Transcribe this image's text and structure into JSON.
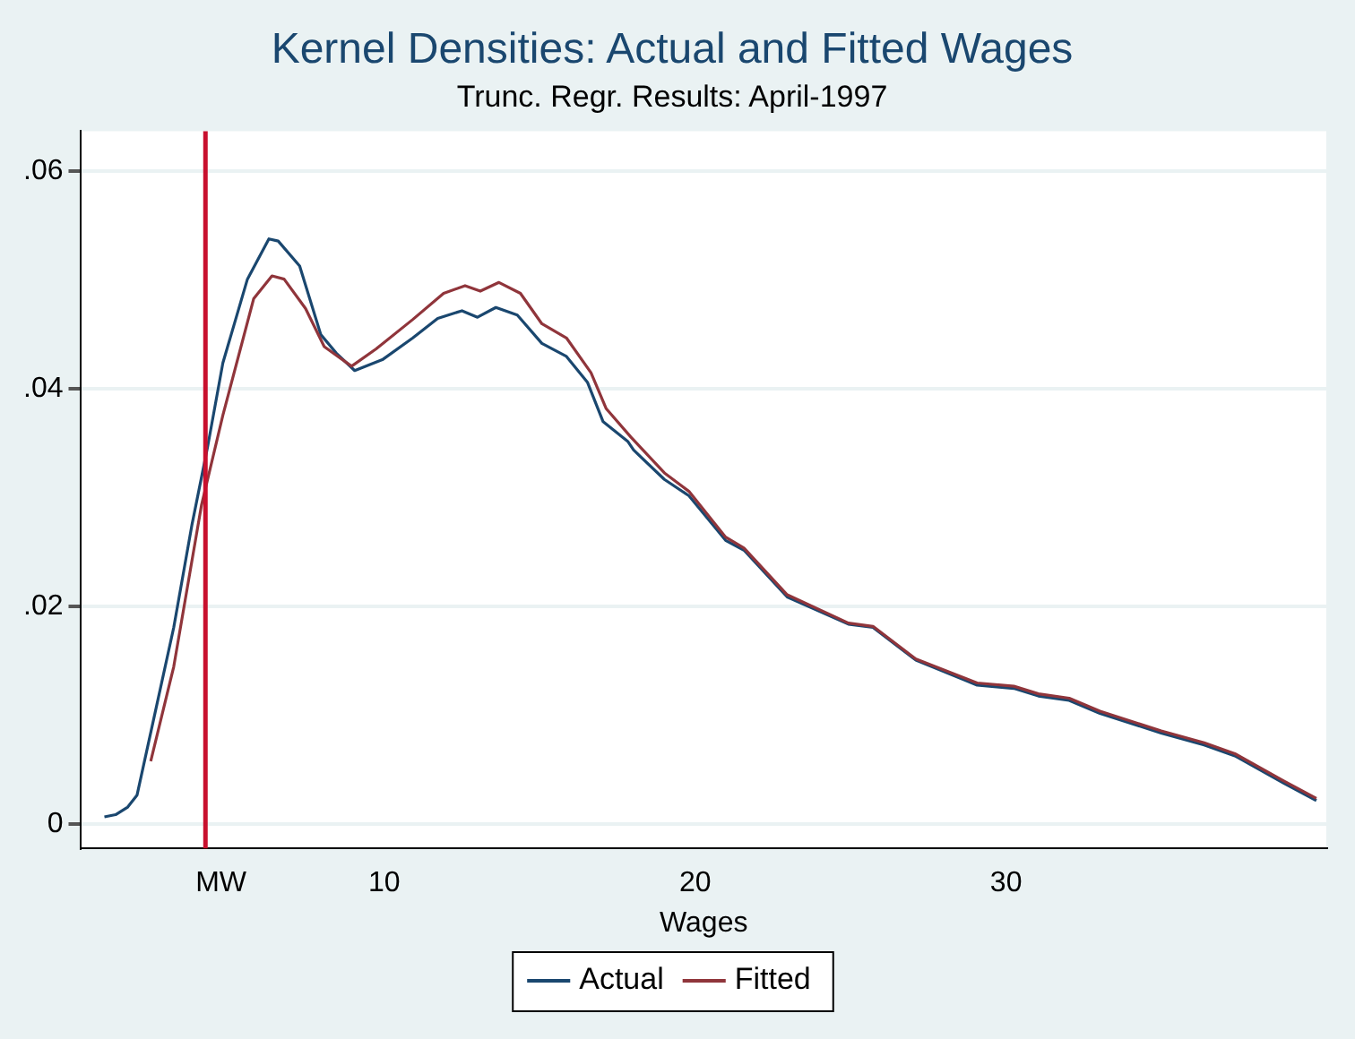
{
  "chart_data": {
    "type": "line",
    "title": "Kernel Densities: Actual and Fitted Wages",
    "subtitle": "Trunc. Regr. Results: April-1997",
    "xlabel": "Wages",
    "xlim": [
      0.25,
      40.3
    ],
    "ylim": [
      -0.0022,
      0.0637
    ],
    "xticks": [
      {
        "value": 4.75,
        "label": "MW"
      },
      10,
      20,
      30
    ],
    "yticks": [
      {
        "value": 0,
        "label": "0"
      },
      {
        "value": 0.02,
        "label": ".02"
      },
      {
        "value": 0.04,
        "label": ".04"
      },
      {
        "value": 0.06,
        "label": ".06"
      }
    ],
    "grid": "y",
    "legend": "bottom",
    "marker": "none",
    "line_style": "solid",
    "ref_lines": [
      {
        "axis": "x",
        "value": 4.25,
        "color": "#c8102e"
      }
    ],
    "series": [
      {
        "name": "Actual",
        "color": "#1a476f",
        "x": [
          1.0,
          1.36,
          1.75,
          2.05,
          2.64,
          3.23,
          3.82,
          4.32,
          4.81,
          5.6,
          6.29,
          6.59,
          7.28,
          7.96,
          8.46,
          9.05,
          9.94,
          10.92,
          11.72,
          12.5,
          13.0,
          13.59,
          14.28,
          15.07,
          15.86,
          16.54,
          17.04,
          17.83,
          18.02,
          19.01,
          19.8,
          20.98,
          21.57,
          22.96,
          24.93,
          25.72,
          27.1,
          29.07,
          30.25,
          31.04,
          32.03,
          33.02,
          34.99,
          36.37,
          37.36,
          38.93,
          39.98
        ],
        "values": [
          0.0007,
          0.0009,
          0.0016,
          0.0027,
          0.0104,
          0.0181,
          0.0276,
          0.0347,
          0.0424,
          0.0501,
          0.0538,
          0.0536,
          0.0513,
          0.045,
          0.0433,
          0.0417,
          0.0427,
          0.0447,
          0.0465,
          0.0472,
          0.0466,
          0.0475,
          0.0468,
          0.0442,
          0.043,
          0.0406,
          0.037,
          0.0352,
          0.0344,
          0.0317,
          0.0302,
          0.0261,
          0.0252,
          0.0209,
          0.0184,
          0.0181,
          0.0151,
          0.0128,
          0.0125,
          0.0118,
          0.0114,
          0.0102,
          0.0084,
          0.0073,
          0.0063,
          0.0038,
          0.0022
        ]
      },
      {
        "name": "Fitted",
        "color": "#90353b",
        "x": [
          2.49,
          3.23,
          4.12,
          4.81,
          5.8,
          6.39,
          6.78,
          7.47,
          8.07,
          8.95,
          9.74,
          10.92,
          11.91,
          12.6,
          13.09,
          13.69,
          14.38,
          15.07,
          15.86,
          16.65,
          17.14,
          17.93,
          19.01,
          19.8,
          20.98,
          21.57,
          22.96,
          24.93,
          25.72,
          27.1,
          29.07,
          30.25,
          31.04,
          32.03,
          33.02,
          34.99,
          36.37,
          37.36,
          38.93,
          39.98
        ],
        "values": [
          0.0058,
          0.0145,
          0.0293,
          0.0376,
          0.0483,
          0.0504,
          0.0501,
          0.0474,
          0.0439,
          0.0421,
          0.0437,
          0.0464,
          0.0488,
          0.0495,
          0.049,
          0.0498,
          0.0488,
          0.046,
          0.0447,
          0.0415,
          0.0382,
          0.0356,
          0.0323,
          0.0306,
          0.0264,
          0.0254,
          0.0211,
          0.0185,
          0.0182,
          0.0152,
          0.013,
          0.0127,
          0.012,
          0.0116,
          0.0104,
          0.0086,
          0.0075,
          0.0065,
          0.004,
          0.0024
        ]
      }
    ]
  }
}
